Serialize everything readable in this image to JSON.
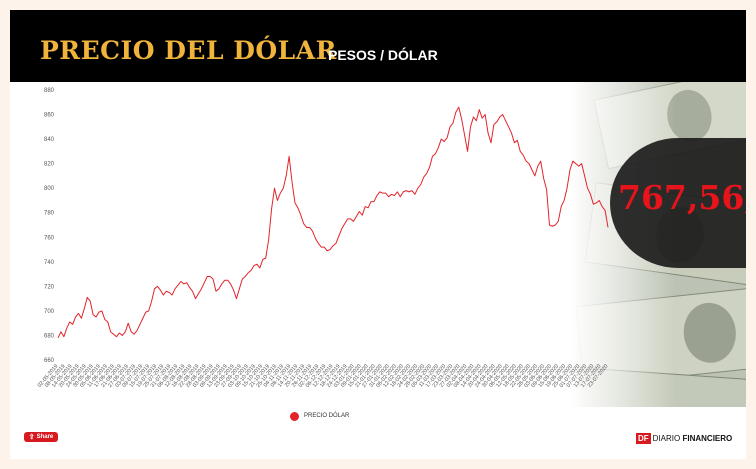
{
  "header": {
    "title": "PRECIO DEL DÓLAR",
    "subtitle": "PESOS / DÓLAR",
    "title_color": "#f0b43c",
    "background": "#000000"
  },
  "current_value": "767,56,",
  "current_value_color": "#e8141c",
  "share_button": {
    "label": "Share",
    "icon": "share-icon",
    "color": "#d71920"
  },
  "logo": {
    "mark": "DF",
    "text_light": "DIARIO",
    "text_bold": "FINANCIERO",
    "mark_color": "#d71920"
  },
  "chart_data": {
    "type": "line",
    "title": "PRECIO DEL DÓLAR",
    "subtitle": "PESOS / DÓLAR",
    "xlabel": "",
    "ylabel": "",
    "ylim": [
      660,
      880
    ],
    "yticks": [
      660,
      680,
      700,
      720,
      740,
      760,
      780,
      800,
      820,
      840,
      860,
      880
    ],
    "grid": false,
    "legend_position": "bottom-center",
    "line_color": "#e3232a",
    "x_tick_labels": [
      "02-05-2019",
      "08-05-2019",
      "14-05-2019",
      "20-05-2019",
      "24-05-2019",
      "30-05-2019",
      "05-06-2019",
      "11-06-2019",
      "17-06-2019",
      "21-06-2019",
      "27-06-2019",
      "03-07-2019",
      "09-07-2019",
      "15-07-2019",
      "19-07-2019",
      "25-07-2019",
      "31-07-2019",
      "06-08-2019",
      "12-08-2019",
      "16-08-2019",
      "22-08-2019",
      "28-08-2019",
      "03-09-2019",
      "09-09-2019",
      "13-09-2019",
      "23-09-2019",
      "27-09-2019",
      "03-10-2019",
      "09-10-2019",
      "15-10-2019",
      "21-10-2019",
      "25-10-2019",
      "04-11-2019",
      "08-11-2019",
      "14-11-2019",
      "20-11-2019",
      "26-11-2019",
      "02-12-2019",
      "06-12-2019",
      "12-12-2019",
      "18-12-2019",
      "24-12-2019",
      "03-01-2020",
      "09-01-2020",
      "15-01-2020",
      "21-01-2020",
      "27-01-2020",
      "31-01-2020",
      "06-02-2020",
      "12-02-2020",
      "18-02-2020",
      "24-02-2020",
      "28-02-2020",
      "05-03-2020",
      "11-03-2020",
      "17-03-2020",
      "23-03-2020",
      "27-03-2020",
      "02-04-2020",
      "08-04-2020",
      "14-04-2020",
      "20-04-2020",
      "24-04-2020",
      "30-04-2020",
      "06-05-2020",
      "12-05-2020",
      "18-05-2020",
      "22-05-2020",
      "28-05-2020",
      "03-06-2020",
      "09-06-2020",
      "15-06-2020",
      "19-06-2020",
      "25-06-2020",
      "01-07-2020",
      "07-07-2020",
      "13-07-2020",
      "17-07-2020",
      "23-07-2020"
    ],
    "series": [
      {
        "name": "PRECIO DÓLAR",
        "values": [
          678,
          683,
          679,
          686,
          691,
          689,
          695,
          698,
          694,
          702,
          711,
          708,
          697,
          695,
          699,
          700,
          693,
          691,
          683,
          681,
          679,
          682,
          680,
          683,
          690,
          683,
          681,
          684,
          689,
          694,
          699,
          700,
          708,
          718,
          720,
          717,
          713,
          716,
          715,
          713,
          718,
          721,
          724,
          722,
          723,
          719,
          716,
          710,
          714,
          718,
          723,
          728,
          728,
          726,
          716,
          718,
          722,
          725,
          725,
          722,
          717,
          710,
          718,
          726,
          728,
          731,
          733,
          737,
          738,
          735,
          742,
          743,
          758,
          783,
          800,
          790,
          796,
          800,
          810,
          826,
          805,
          788,
          784,
          778,
          771,
          768,
          768,
          765,
          759,
          755,
          752,
          752,
          749,
          750,
          753,
          755,
          761,
          767,
          771,
          775,
          775,
          773,
          777,
          781,
          778,
          785,
          784,
          789,
          789,
          794,
          797,
          796,
          796,
          793,
          795,
          794,
          797,
          793,
          797,
          798,
          797,
          798,
          795,
          800,
          803,
          809,
          812,
          817,
          826,
          828,
          833,
          840,
          838,
          841,
          850,
          853,
          862,
          866,
          856,
          843,
          830,
          850,
          858,
          855,
          864,
          857,
          860,
          845,
          837,
          852,
          854,
          858,
          860,
          855,
          850,
          845,
          837,
          839,
          830,
          827,
          822,
          820,
          815,
          810,
          818,
          822,
          808,
          799,
          770,
          769,
          770,
          773,
          785,
          790,
          800,
          815,
          822,
          820,
          818,
          820,
          810,
          800,
          795,
          787,
          788,
          790,
          785,
          782,
          768
        ]
      }
    ]
  }
}
